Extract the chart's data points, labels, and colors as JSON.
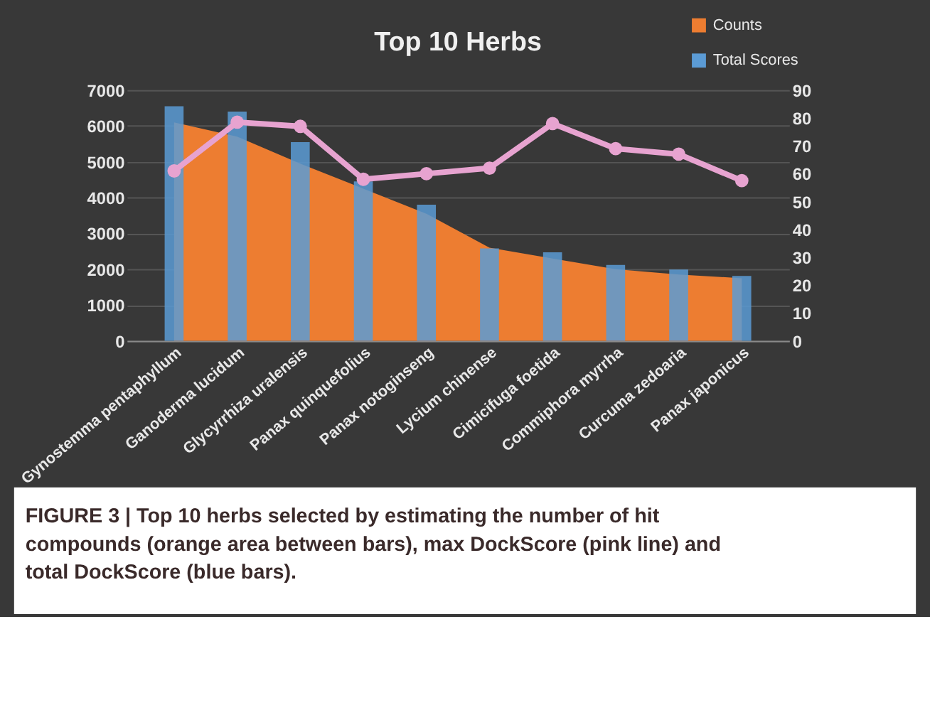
{
  "chart_data": {
    "type": "bar",
    "title": "Top 10 Herbs",
    "categories": [
      "Gynostemma pentaphyllum",
      "Ganoderma lucidum",
      "Glycyrrhiza uralensis",
      "Panax quinquefolius",
      "Panax notoginseng",
      "Lycium chinense",
      "Cimicifuga foetida",
      "Commiphora myrrha",
      "Curcuma zedoaria",
      "Panax japonicus"
    ],
    "series": [
      {
        "name": "Counts",
        "type": "area",
        "color": "#ed7d31",
        "values": [
          6100,
          5700,
          4950,
          4250,
          3550,
          2600,
          2300,
          2000,
          1850,
          1750
        ]
      },
      {
        "name": "Total Scores",
        "color": "#5b9bd5",
        "values": [
          6550,
          6400,
          5550,
          4450,
          3800,
          2580,
          2470,
          2120,
          1990,
          1810
        ]
      },
      {
        "type": "line",
        "axis": "y2",
        "color": "#e7a3d0",
        "marker": "circle",
        "values": [
          61,
          78.5,
          77,
          58,
          60,
          62,
          78,
          69,
          67,
          57.5
        ]
      }
    ],
    "ylim": [
      0,
      7000
    ],
    "yticks": [
      0,
      1000,
      2000,
      3000,
      4000,
      5000,
      6000,
      7000
    ],
    "y2lim": [
      0,
      90
    ],
    "y2ticks": [
      0,
      10,
      20,
      30,
      40,
      50,
      60,
      70,
      80,
      90
    ],
    "grid": "y",
    "legend": "top right",
    "annotations": [
      "FIGURE 3 | Top 10 herbs selected by estimating the number of hit compounds (orange area between bars), max DockScore (pink line) and total DockScore (blue bars)."
    ]
  }
}
